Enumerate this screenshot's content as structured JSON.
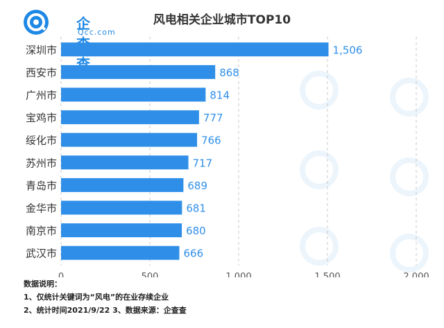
{
  "logo": {
    "name": "企查查",
    "domain": "Qcc.com"
  },
  "title": "风电相关企业城市TOP10",
  "chart_data": {
    "type": "bar",
    "orientation": "horizontal",
    "title": "风电相关企业城市TOP10",
    "categories": [
      "深圳市",
      "西安市",
      "广州市",
      "宝鸡市",
      "绥化市",
      "苏州市",
      "青岛市",
      "金华市",
      "南京市",
      "武汉市"
    ],
    "values": [
      1506,
      868,
      814,
      777,
      766,
      717,
      689,
      681,
      680,
      666
    ],
    "value_labels": [
      "1,506",
      "868",
      "814",
      "777",
      "766",
      "717",
      "689",
      "681",
      "680",
      "666"
    ],
    "xlim": [
      0,
      2000
    ],
    "ticks": [
      0,
      500,
      1000,
      1500,
      2000
    ],
    "tick_labels": [
      "0",
      "500",
      "1,000",
      "1,500",
      "2,000"
    ],
    "grid": true,
    "colors": {
      "bar": "#2f8fe8",
      "label": "#2f8fe8",
      "grid": "#c8c8c8"
    }
  },
  "notes": {
    "heading": "数据说明：",
    "line1": "1、仅统计关键词为“风电”的在业存续企业",
    "line2": "2、统计时间2021/9/22   3、数据来源：企查查"
  }
}
